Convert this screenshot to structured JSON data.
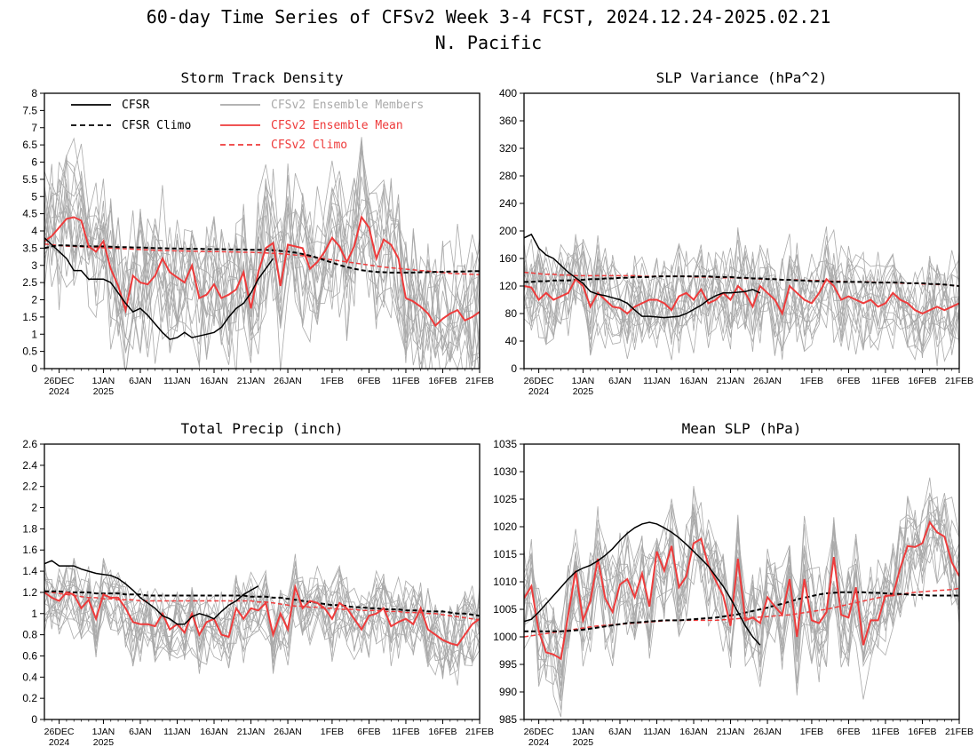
{
  "figure": {
    "title": "60-day Time Series of CFSv2 Week 3-4 FCST, 2024.12.24-2025.02.21",
    "subtitle": "N. Pacific",
    "colors": {
      "cfsr": "#000000",
      "members": "#aaaaaa",
      "ens_mean": "#ee3b3b",
      "cfsv2_climo": "#ee3b3b"
    },
    "legend": {
      "placement": "top-left of first panel",
      "entries": [
        {
          "label": "CFSR",
          "color": "#000000",
          "dash": false
        },
        {
          "label": "CFSR Climo",
          "color": "#000000",
          "dash": true
        },
        {
          "label": "CFSv2 Ensemble Members",
          "color": "#aaaaaa",
          "dash": false
        },
        {
          "label": "CFSv2 Ensemble Mean",
          "color": "#ee3b3b",
          "dash": false
        },
        {
          "label": "CFSv2 Climo",
          "color": "#ee3b3b",
          "dash": true
        }
      ]
    }
  },
  "chart_data": [
    {
      "type": "line",
      "title": "Storm Track Density",
      "x_start": "2024-12-24",
      "days": 60,
      "ylim": [
        0,
        8
      ],
      "yticks": [
        "0",
        "0.5",
        "1",
        "1.5",
        "2",
        "2.5",
        "3",
        "3.5",
        "4",
        "4.5",
        "5",
        "5.5",
        "6",
        "6.5",
        "7",
        "7.5",
        "8"
      ],
      "xticks": [
        {
          "day": 2,
          "l1": "26DEC",
          "l2": "2024"
        },
        {
          "day": 8,
          "l1": "1JAN",
          "l2": "2025"
        },
        {
          "day": 13,
          "l1": "6JAN",
          "l2": ""
        },
        {
          "day": 18,
          "l1": "11JAN",
          "l2": ""
        },
        {
          "day": 23,
          "l1": "16JAN",
          "l2": ""
        },
        {
          "day": 28,
          "l1": "21JAN",
          "l2": ""
        },
        {
          "day": 33,
          "l1": "26JAN",
          "l2": ""
        },
        {
          "day": 39,
          "l1": "1FEB",
          "l2": ""
        },
        {
          "day": 44,
          "l1": "6FEB",
          "l2": ""
        },
        {
          "day": 49,
          "l1": "11FEB",
          "l2": ""
        },
        {
          "day": 54,
          "l1": "16FEB",
          "l2": ""
        },
        {
          "day": 59,
          "l1": "21FEB",
          "l2": ""
        }
      ],
      "cfsr": [
        3.8,
        3.6,
        3.4,
        3.2,
        2.85,
        2.85,
        2.6,
        2.6,
        2.6,
        2.5,
        2.2,
        1.9,
        1.65,
        1.75,
        1.55,
        1.3,
        1.05,
        0.85,
        0.9,
        1.05,
        0.9,
        0.95,
        1.0,
        1.05,
        1.2,
        1.5,
        1.75,
        1.9,
        2.2,
        2.6,
        2.9,
        3.2
      ],
      "cfsr_climo": [
        3.5,
        3.55,
        3.58,
        3.58,
        3.57,
        3.56,
        3.55,
        3.55,
        3.55,
        3.54,
        3.53,
        3.53,
        3.52,
        3.52,
        3.51,
        3.5,
        3.5,
        3.49,
        3.49,
        3.48,
        3.48,
        3.48,
        3.47,
        3.47,
        3.47,
        3.46,
        3.46,
        3.46,
        3.45,
        3.45,
        3.45,
        3.44,
        3.42,
        3.4,
        3.37,
        3.33,
        3.28,
        3.22,
        3.15,
        3.08,
        3.01,
        2.95,
        2.9,
        2.86,
        2.83,
        2.81,
        2.8,
        2.79,
        2.79,
        2.79,
        2.79,
        2.8,
        2.8,
        2.81,
        2.81,
        2.82,
        2.82,
        2.82,
        2.83,
        2.83
      ],
      "ens_mean": [
        3.7,
        3.85,
        4.1,
        4.35,
        4.4,
        4.3,
        3.55,
        3.4,
        3.7,
        2.9,
        2.4,
        1.7,
        2.7,
        2.5,
        2.45,
        2.7,
        3.2,
        2.8,
        2.65,
        2.5,
        3.0,
        2.05,
        2.15,
        2.45,
        2.05,
        2.15,
        2.3,
        2.8,
        1.75,
        2.8,
        3.5,
        3.65,
        2.4,
        3.6,
        3.55,
        3.5,
        2.9,
        3.1,
        3.4,
        3.8,
        3.55,
        3.1,
        3.55,
        4.4,
        4.1,
        3.2,
        3.75,
        3.6,
        3.2,
        2.05,
        1.95,
        1.8,
        1.6,
        1.25,
        1.45,
        1.6,
        1.7,
        1.4,
        1.5,
        1.65
      ],
      "cfsv2_climo": [
        3.62,
        3.6,
        3.58,
        3.56,
        3.55,
        3.54,
        3.53,
        3.52,
        3.51,
        3.5,
        3.49,
        3.48,
        3.47,
        3.46,
        3.45,
        3.44,
        3.43,
        3.43,
        3.42,
        3.42,
        3.41,
        3.41,
        3.4,
        3.4,
        3.4,
        3.39,
        3.39,
        3.38,
        3.38,
        3.37,
        3.36,
        3.35,
        3.34,
        3.32,
        3.3,
        3.28,
        3.25,
        3.22,
        3.19,
        3.16,
        3.13,
        3.1,
        3.07,
        3.04,
        3.01,
        2.98,
        2.95,
        2.93,
        2.91,
        2.89,
        2.87,
        2.85,
        2.83,
        2.81,
        2.79,
        2.77,
        2.76,
        2.75,
        2.74,
        2.73
      ],
      "members": {
        "count": 16,
        "spread": 1.3
      }
    },
    {
      "type": "line",
      "title": "SLP Variance (hPa^2)",
      "x_start": "2024-12-24",
      "days": 60,
      "ylim": [
        0,
        400
      ],
      "yticks": [
        "0",
        "40",
        "80",
        "120",
        "160",
        "200",
        "240",
        "280",
        "320",
        "360",
        "400"
      ],
      "xticks": [
        {
          "day": 2,
          "l1": "26DEC",
          "l2": "2024"
        },
        {
          "day": 8,
          "l1": "1JAN",
          "l2": "2025"
        },
        {
          "day": 13,
          "l1": "6JAN",
          "l2": ""
        },
        {
          "day": 18,
          "l1": "11JAN",
          "l2": ""
        },
        {
          "day": 23,
          "l1": "16JAN",
          "l2": ""
        },
        {
          "day": 28,
          "l1": "21JAN",
          "l2": ""
        },
        {
          "day": 33,
          "l1": "26JAN",
          "l2": ""
        },
        {
          "day": 39,
          "l1": "1FEB",
          "l2": ""
        },
        {
          "day": 44,
          "l1": "6FEB",
          "l2": ""
        },
        {
          "day": 49,
          "l1": "11FEB",
          "l2": ""
        },
        {
          "day": 54,
          "l1": "16FEB",
          "l2": ""
        },
        {
          "day": 59,
          "l1": "21FEB",
          "l2": ""
        }
      ],
      "cfsr": [
        190,
        195,
        175,
        165,
        160,
        150,
        140,
        132,
        124,
        112,
        108,
        106,
        103,
        100,
        95,
        85,
        76,
        76,
        75,
        74,
        75,
        76,
        80,
        86,
        92,
        100,
        106,
        110,
        110,
        111,
        112,
        115,
        110
      ],
      "cfsr_climo": [
        126,
        126,
        127,
        127,
        128,
        128,
        128,
        129,
        129,
        130,
        130,
        131,
        131,
        132,
        132,
        133,
        133,
        133,
        134,
        134,
        134,
        134,
        134,
        134,
        134,
        134,
        133,
        133,
        133,
        132,
        132,
        131,
        131,
        130,
        130,
        129,
        129,
        128,
        128,
        127,
        127,
        127,
        126,
        126,
        126,
        126,
        126,
        125,
        125,
        125,
        125,
        125,
        124,
        124,
        124,
        123,
        123,
        122,
        121,
        120
      ],
      "ens_mean": [
        120,
        118,
        100,
        110,
        100,
        105,
        110,
        130,
        120,
        90,
        110,
        100,
        90,
        88,
        80,
        90,
        95,
        100,
        100,
        95,
        85,
        105,
        110,
        100,
        115,
        95,
        100,
        110,
        100,
        120,
        110,
        90,
        120,
        110,
        100,
        80,
        120,
        110,
        100,
        95,
        110,
        130,
        120,
        100,
        105,
        100,
        95,
        100,
        90,
        95,
        110,
        100,
        95,
        85,
        80,
        85,
        90,
        85,
        90,
        95
      ],
      "cfsv2_climo": [
        140,
        139,
        138,
        137,
        137,
        136,
        136,
        135,
        135,
        135,
        135,
        135,
        135,
        135,
        135,
        135,
        134,
        134,
        134,
        134,
        134,
        134,
        134,
        133,
        133,
        133,
        133,
        132,
        132,
        132,
        131,
        131,
        130,
        130,
        130,
        129,
        129,
        129,
        128,
        128,
        128,
        127,
        127,
        127,
        126,
        126,
        126,
        126,
        125,
        125,
        125,
        124,
        124,
        124,
        123,
        123,
        122,
        122,
        121,
        120
      ],
      "members": {
        "count": 16,
        "spread": 45
      }
    },
    {
      "type": "line",
      "title": "Total Precip (inch)",
      "x_start": "2024-12-24",
      "days": 60,
      "ylim": [
        0,
        2.6
      ],
      "yticks": [
        "0",
        "0.2",
        "0.4",
        "0.6",
        "0.8",
        "1",
        "1.2",
        "1.4",
        "1.6",
        "1.8",
        "2",
        "2.2",
        "2.4",
        "2.6"
      ],
      "xticks": [
        {
          "day": 2,
          "l1": "26DEC",
          "l2": "2024"
        },
        {
          "day": 8,
          "l1": "1JAN",
          "l2": "2025"
        },
        {
          "day": 13,
          "l1": "6JAN",
          "l2": ""
        },
        {
          "day": 18,
          "l1": "11JAN",
          "l2": ""
        },
        {
          "day": 23,
          "l1": "16JAN",
          "l2": ""
        },
        {
          "day": 28,
          "l1": "21JAN",
          "l2": ""
        },
        {
          "day": 33,
          "l1": "26JAN",
          "l2": ""
        },
        {
          "day": 39,
          "l1": "1FEB",
          "l2": ""
        },
        {
          "day": 44,
          "l1": "6FEB",
          "l2": ""
        },
        {
          "day": 49,
          "l1": "11FEB",
          "l2": ""
        },
        {
          "day": 54,
          "l1": "16FEB",
          "l2": ""
        },
        {
          "day": 59,
          "l1": "21FEB",
          "l2": ""
        }
      ],
      "cfsr": [
        1.47,
        1.5,
        1.45,
        1.45,
        1.45,
        1.42,
        1.4,
        1.38,
        1.37,
        1.36,
        1.33,
        1.28,
        1.22,
        1.15,
        1.1,
        1.05,
        0.98,
        0.95,
        0.9,
        0.9,
        0.97,
        1.0,
        0.98,
        0.95,
        1.02,
        1.08,
        1.12,
        1.18,
        1.22,
        1.26
      ],
      "cfsr_climo": [
        1.21,
        1.21,
        1.21,
        1.2,
        1.2,
        1.2,
        1.2,
        1.19,
        1.19,
        1.19,
        1.19,
        1.18,
        1.18,
        1.18,
        1.17,
        1.17,
        1.17,
        1.17,
        1.17,
        1.17,
        1.17,
        1.17,
        1.17,
        1.17,
        1.17,
        1.17,
        1.17,
        1.17,
        1.16,
        1.16,
        1.16,
        1.15,
        1.15,
        1.14,
        1.13,
        1.12,
        1.11,
        1.1,
        1.09,
        1.08,
        1.08,
        1.07,
        1.06,
        1.06,
        1.05,
        1.05,
        1.04,
        1.04,
        1.04,
        1.03,
        1.03,
        1.03,
        1.02,
        1.02,
        1.02,
        1.01,
        1.0,
        1.0,
        0.99,
        0.98
      ],
      "ens_mean": [
        1.2,
        1.15,
        1.12,
        1.2,
        1.18,
        1.05,
        1.13,
        0.95,
        1.18,
        1.15,
        1.15,
        1.05,
        0.92,
        0.9,
        0.9,
        0.88,
        1.0,
        0.85,
        0.9,
        0.82,
        1.0,
        0.8,
        0.92,
        0.95,
        0.8,
        0.78,
        1.05,
        0.95,
        1.05,
        1.03,
        1.1,
        0.8,
        1.0,
        0.85,
        1.25,
        1.05,
        1.12,
        1.1,
        1.05,
        0.95,
        1.1,
        1.05,
        0.95,
        0.85,
        0.98,
        1.0,
        1.05,
        0.88,
        0.92,
        0.95,
        0.9,
        1.05,
        0.85,
        0.8,
        0.75,
        0.72,
        0.7,
        0.8,
        0.9,
        0.95
      ],
      "cfsv2_climo": [
        1.21,
        1.2,
        1.19,
        1.18,
        1.17,
        1.16,
        1.15,
        1.15,
        1.14,
        1.14,
        1.13,
        1.13,
        1.13,
        1.12,
        1.12,
        1.12,
        1.12,
        1.12,
        1.12,
        1.12,
        1.12,
        1.12,
        1.12,
        1.12,
        1.12,
        1.12,
        1.12,
        1.12,
        1.12,
        1.11,
        1.11,
        1.1,
        1.09,
        1.08,
        1.07,
        1.07,
        1.06,
        1.06,
        1.05,
        1.05,
        1.04,
        1.04,
        1.04,
        1.03,
        1.03,
        1.03,
        1.02,
        1.02,
        1.02,
        1.01,
        1.01,
        1.01,
        1.0,
        1.0,
        0.99,
        0.98,
        0.97,
        0.96,
        0.95,
        0.94
      ],
      "members": {
        "count": 16,
        "spread": 0.22
      }
    },
    {
      "type": "line",
      "title": "Mean SLP (hPa)",
      "x_start": "2024-12-24",
      "days": 60,
      "ylim": [
        985,
        1035
      ],
      "yticks": [
        "985",
        "990",
        "995",
        "1000",
        "1005",
        "1010",
        "1015",
        "1020",
        "1025",
        "1030",
        "1035"
      ],
      "xticks": [
        {
          "day": 2,
          "l1": "26DEC",
          "l2": "2024"
        },
        {
          "day": 8,
          "l1": "1JAN",
          "l2": "2025"
        },
        {
          "day": 13,
          "l1": "6JAN",
          "l2": ""
        },
        {
          "day": 18,
          "l1": "11JAN",
          "l2": ""
        },
        {
          "day": 23,
          "l1": "16JAN",
          "l2": ""
        },
        {
          "day": 28,
          "l1": "21JAN",
          "l2": ""
        },
        {
          "day": 33,
          "l1": "26JAN",
          "l2": ""
        },
        {
          "day": 39,
          "l1": "1FEB",
          "l2": ""
        },
        {
          "day": 44,
          "l1": "6FEB",
          "l2": ""
        },
        {
          "day": 49,
          "l1": "11FEB",
          "l2": ""
        },
        {
          "day": 54,
          "l1": "16FEB",
          "l2": ""
        },
        {
          "day": 59,
          "l1": "21FEB",
          "l2": ""
        }
      ],
      "cfsr": [
        1002.8,
        1003.2,
        1004.5,
        1006,
        1007.5,
        1009,
        1010.5,
        1011.8,
        1012.5,
        1013,
        1013.8,
        1014.8,
        1016,
        1017.5,
        1018.8,
        1019.8,
        1020.5,
        1020.8,
        1020.5,
        1019.8,
        1019,
        1018,
        1016.8,
        1015.5,
        1014.2,
        1012.8,
        1011,
        1009.2,
        1007,
        1004.5,
        1002,
        1000,
        998.5
      ],
      "cfsr_climo": [
        1001,
        1001,
        1001,
        1001,
        1001,
        1001,
        1001.1,
        1001.2,
        1001.3,
        1001.5,
        1001.7,
        1001.9,
        1002.1,
        1002.3,
        1002.5,
        1002.6,
        1002.7,
        1002.8,
        1002.9,
        1003,
        1003,
        1003,
        1003.1,
        1003.2,
        1003.3,
        1003.4,
        1003.5,
        1003.7,
        1003.9,
        1004.1,
        1004.4,
        1004.7,
        1005,
        1005.3,
        1005.7,
        1006,
        1006.4,
        1006.8,
        1007.1,
        1007.4,
        1007.7,
        1007.9,
        1008,
        1008.1,
        1008.1,
        1008.1,
        1008.1,
        1008,
        1008,
        1007.9,
        1007.8,
        1007.8,
        1007.7,
        1007.6,
        1007.6,
        1007.5,
        1007.5,
        1007.5,
        1007.5,
        1007.5
      ],
      "ens_mean": [
        1007,
        1009.2,
        1001,
        997.2,
        996.8,
        996,
        1004,
        1012,
        1003,
        1006.5,
        1014.2,
        1007,
        1004.5,
        1009.5,
        1010.5,
        1007.2,
        1011.5,
        1005.5,
        1015.5,
        1012,
        1016.5,
        1009,
        1011,
        1017,
        1017.8,
        1013,
        1010.2,
        1007.5,
        1002,
        1014.2,
        1003,
        1003.5,
        1002.5,
        1007.2,
        1005.5,
        1004,
        1010.5,
        1000,
        1010.5,
        1003,
        1002.5,
        1004.5,
        1014.5,
        1004,
        1003.5,
        1009,
        998.5,
        1003,
        1003,
        1007.5,
        1007.5,
        1012.5,
        1016.5,
        1016.3,
        1017,
        1020.8,
        1019,
        1018.2,
        1013.5,
        1011
      ],
      "cfsv2_climo": [
        1000,
        1000.2,
        1000.4,
        1000.6,
        1000.8,
        1001,
        1001.2,
        1001.4,
        1001.6,
        1001.8,
        1002,
        1002.1,
        1002.2,
        1002.3,
        1002.4,
        1002.5,
        1002.6,
        1002.7,
        1002.8,
        1002.9,
        1003,
        1003,
        1003,
        1003,
        1003,
        1003,
        1003,
        1003.1,
        1003.2,
        1003.3,
        1003.4,
        1003.5,
        1003.6,
        1003.7,
        1003.8,
        1003.9,
        1004,
        1004.2,
        1004.4,
        1004.6,
        1004.8,
        1005,
        1005.3,
        1005.6,
        1005.9,
        1006.2,
        1006.5,
        1006.8,
        1007.1,
        1007.3,
        1007.5,
        1007.7,
        1007.9,
        1008.1,
        1008.2,
        1008.3,
        1008.4,
        1008.5,
        1008.6,
        1008.8
      ],
      "members": {
        "count": 16,
        "spread": 6
      }
    }
  ]
}
